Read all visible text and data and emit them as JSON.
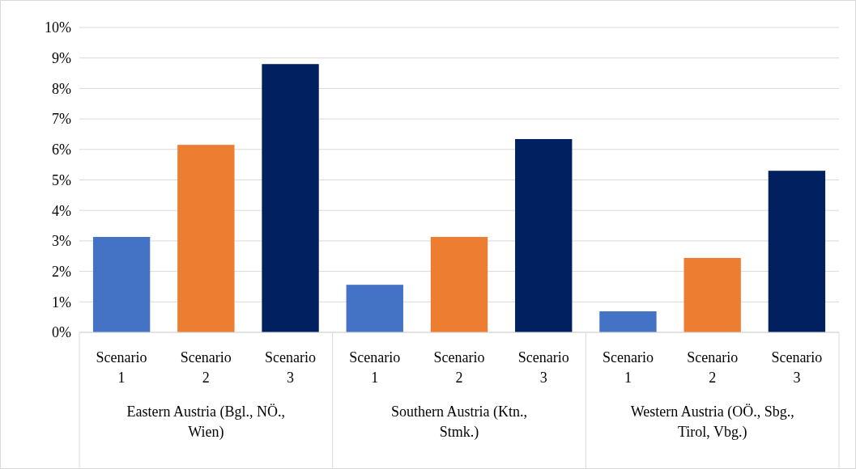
{
  "chart_data": {
    "type": "bar",
    "categories": [
      "Eastern Austria (Bgl., NÖ., Wien)",
      "Southern Austria (Ktn., Stmk.)",
      "Western Austria (OÖ., Sbg., Tirol, Vbg.)"
    ],
    "series": [
      {
        "name": "Scenario 1",
        "color": "#4472c4",
        "values": [
          3.13,
          1.56,
          0.69
        ]
      },
      {
        "name": "Scenario 2",
        "color": "#ed7d31",
        "values": [
          6.15,
          3.13,
          2.44
        ]
      },
      {
        "name": "Scenario 3",
        "color": "#002060",
        "values": [
          8.8,
          6.34,
          5.3
        ]
      }
    ],
    "ylim": [
      0,
      10
    ],
    "yticks": [
      {
        "value": 0,
        "label": "0%"
      },
      {
        "value": 1,
        "label": "1%"
      },
      {
        "value": 2,
        "label": "2%"
      },
      {
        "value": 3,
        "label": "3%"
      },
      {
        "value": 4,
        "label": "4%"
      },
      {
        "value": 5,
        "label": "5%"
      },
      {
        "value": 6,
        "label": "6%"
      },
      {
        "value": 7,
        "label": "7%"
      },
      {
        "value": 8,
        "label": "8%"
      },
      {
        "value": 9,
        "label": "9%"
      },
      {
        "value": 10,
        "label": "10%"
      }
    ],
    "grid": "y"
  }
}
